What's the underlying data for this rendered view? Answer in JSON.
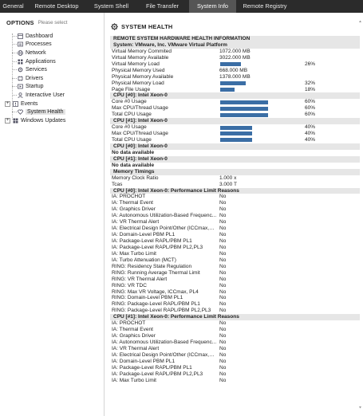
{
  "tabs": [
    "General",
    "Remote Desktop",
    "System Shell",
    "File Transfer",
    "System Info",
    "Remote Registry"
  ],
  "active_tab": "System Info",
  "sidebar": {
    "title": "OPTIONS",
    "hint": "Please select",
    "items": [
      {
        "label": "Dashboard",
        "icon": "dashboard-icon"
      },
      {
        "label": "Processes",
        "icon": "processes-icon"
      },
      {
        "label": "Network",
        "icon": "network-icon"
      },
      {
        "label": "Applications",
        "icon": "applications-icon"
      },
      {
        "label": "Services",
        "icon": "services-icon"
      },
      {
        "label": "Drivers",
        "icon": "drivers-icon"
      },
      {
        "label": "Startup",
        "icon": "startup-icon"
      },
      {
        "label": "Interactive User",
        "icon": "user-icon"
      },
      {
        "label": "Events",
        "icon": "events-icon"
      },
      {
        "label": "System Health",
        "icon": "heart-icon"
      },
      {
        "label": "Windows Updates",
        "icon": "windows-updates-icon"
      }
    ],
    "selected": "System Health"
  },
  "main": {
    "title": "SYSTEM HEALTH",
    "rows": [
      {
        "t": "hdr",
        "k": "REMOTE SYSTEM HARDWARE HEALTH INFORMATION"
      },
      {
        "t": "hdr",
        "k": "System: VMware, Inc. VMware Virtual Platform"
      },
      {
        "t": "kv",
        "k": "Virtual Memory Commited",
        "v": "1072.000 MB"
      },
      {
        "t": "kv",
        "k": "Virtual Memory Available",
        "v": "3022.000 MB"
      },
      {
        "t": "bar",
        "k": "Virtual Memory Load",
        "p": "26%",
        "f": 0.26
      },
      {
        "t": "kv",
        "k": "Physical Memory Used",
        "v": "668.000 MB"
      },
      {
        "t": "kv",
        "k": "Physical Memory Available",
        "v": "1378.000 MB"
      },
      {
        "t": "bar",
        "k": "Physical Memory Load",
        "p": "32%",
        "f": 0.32
      },
      {
        "t": "bar",
        "k": "Page File Usage",
        "p": "18%",
        "f": 0.18
      },
      {
        "t": "hdr",
        "k": "CPU [#0]: Intel Xeon-0"
      },
      {
        "t": "bar",
        "k": "Core #0 Usage",
        "p": "60%",
        "f": 0.6
      },
      {
        "t": "bar",
        "k": "Max CPU/Thread Usage",
        "p": "60%",
        "f": 0.6
      },
      {
        "t": "bar",
        "k": "Total CPU Usage",
        "p": "60%",
        "f": 0.6
      },
      {
        "t": "hdr",
        "k": "CPU [#1]: Intel Xeon-0"
      },
      {
        "t": "bar",
        "k": "Core #0 Usage",
        "p": "40%",
        "f": 0.4
      },
      {
        "t": "bar",
        "k": "Max CPU/Thread Usage",
        "p": "40%",
        "f": 0.4
      },
      {
        "t": "bar",
        "k": "Total CPU Usage",
        "p": "40%",
        "f": 0.4
      },
      {
        "t": "hdr",
        "k": "CPU [#0]: Intel Xeon-0"
      },
      {
        "t": "nodata",
        "k": "No data available"
      },
      {
        "t": "hdr",
        "k": "CPU [#1]: Intel Xeon-0"
      },
      {
        "t": "nodata",
        "k": "No data available"
      },
      {
        "t": "hdr",
        "k": "Memory Timings"
      },
      {
        "t": "kv",
        "k": "Memory Clock Ratio",
        "v": "1.000 x"
      },
      {
        "t": "kv",
        "k": "Tcas",
        "v": "3.000 T"
      },
      {
        "t": "hdr",
        "k": "CPU [#0]: Intel Xeon-0: Performance Limit Reasons"
      },
      {
        "t": "kv",
        "k": "IA: PROCHOT",
        "v": "No"
      },
      {
        "t": "kv",
        "k": "IA: Thermal Event",
        "v": "No"
      },
      {
        "t": "kv",
        "k": "IA: Graphics Driver",
        "v": "No"
      },
      {
        "t": "kv",
        "k": "IA: Autonomous Utilization-Based Frequenc...",
        "v": "No"
      },
      {
        "t": "kv",
        "k": "IA: VR Thermal Alert",
        "v": "No"
      },
      {
        "t": "kv",
        "k": "IA: Electrical Design Point/Other (ICCmax,PL...",
        "v": "No"
      },
      {
        "t": "kv",
        "k": "IA: Domain-Level PBM PL1",
        "v": "No"
      },
      {
        "t": "kv",
        "k": "IA: Package-Level RAPL/PBM PL1",
        "v": "No"
      },
      {
        "t": "kv",
        "k": "IA: Package-Level RAPL/PBM PL2,PL3",
        "v": "No"
      },
      {
        "t": "kv",
        "k": "IA: Max Turbo Limit",
        "v": "No"
      },
      {
        "t": "kv",
        "k": "IA: Turbo Attenuation (MCT)",
        "v": "No"
      },
      {
        "t": "kv",
        "k": "RING: Residency State Regulation",
        "v": "No"
      },
      {
        "t": "kv",
        "k": "RING: Running Average Thermal Limit",
        "v": "No"
      },
      {
        "t": "kv",
        "k": "RING: VR Thermal Alert",
        "v": "No"
      },
      {
        "t": "kv",
        "k": "RING: VR TDC",
        "v": "No"
      },
      {
        "t": "kv",
        "k": "RING: Max VR Voltage, ICCmax, PL4",
        "v": "No"
      },
      {
        "t": "kv",
        "k": "RING: Domain-Level PBM PL1",
        "v": "No"
      },
      {
        "t": "kv",
        "k": "RING: Package-Level RAPL/PBM PL1",
        "v": "No"
      },
      {
        "t": "kv",
        "k": "RING: Package-Level RAPL/PBM PL2,PL3",
        "v": "No"
      },
      {
        "t": "hdr",
        "k": "CPU [#1]: Intel Xeon-0: Performance Limit Reasons"
      },
      {
        "t": "kv",
        "k": "IA: PROCHOT",
        "v": "No"
      },
      {
        "t": "kv",
        "k": "IA: Thermal Event",
        "v": "No"
      },
      {
        "t": "kv",
        "k": "IA: Graphics Driver",
        "v": "No"
      },
      {
        "t": "kv",
        "k": "IA: Autonomous Utilization-Based Frequenc...",
        "v": "No"
      },
      {
        "t": "kv",
        "k": "IA: VR Thermal Alert",
        "v": "No"
      },
      {
        "t": "kv",
        "k": "IA: Electrical Design Point/Other (ICCmax,PL...",
        "v": "No"
      },
      {
        "t": "kv",
        "k": "IA: Domain-Level PBM PL1",
        "v": "No"
      },
      {
        "t": "kv",
        "k": "IA: Package-Level RAPL/PBM PL1",
        "v": "No"
      },
      {
        "t": "kv",
        "k": "IA: Package-Level RAPL/PBM PL2,PL3",
        "v": "No"
      },
      {
        "t": "kv",
        "k": "IA: Max Turbo Limit",
        "v": "No"
      }
    ]
  },
  "colors": {
    "tabbar": "#2b2b2b",
    "active_tab": "#555555",
    "bar": "#3b6ea5",
    "header_row": "#e6e6e6"
  }
}
